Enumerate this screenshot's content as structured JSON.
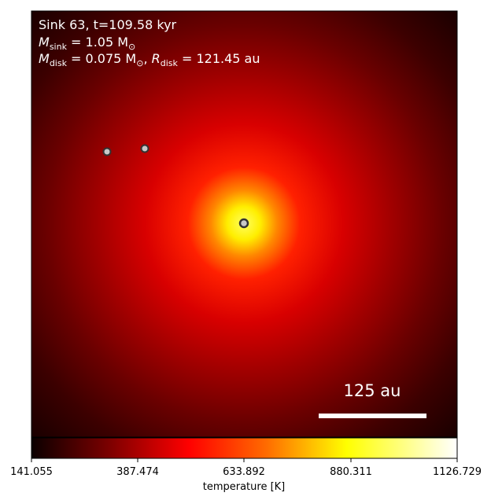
{
  "panel": {
    "title_line1": "Sink 63, t=109.58 kyr",
    "title_line2_sym": "M",
    "title_line2_sub": "sink",
    "title_line2_rest": " = 1.05 M",
    "title_line2_sun": "⊙",
    "title_line3_sym1": "M",
    "title_line3_sub1": "disk",
    "title_line3_mid": " = 0.075 M",
    "title_line3_sun": "⊙",
    "title_line3_comma": ", ",
    "title_line3_sym2": "R",
    "title_line3_sub2": "disk",
    "title_line3_rest": " = 121.45 au"
  },
  "scale_bar": {
    "label": "125 au"
  },
  "colorbar": {
    "label": "temperature [K]",
    "ticks": [
      "141.055",
      "387.474",
      "633.892",
      "880.311",
      "1126.729"
    ],
    "min": 141.055,
    "max": 1126.729,
    "colormap": "hot"
  },
  "sinks": [
    {
      "role": "primary"
    },
    {
      "role": "companion"
    },
    {
      "role": "companion"
    }
  ],
  "colors": {
    "background_dark": "#1a0000",
    "text": "#ffffff",
    "sink_fill": "#c8c8c8",
    "sink_stroke": "#333333"
  }
}
